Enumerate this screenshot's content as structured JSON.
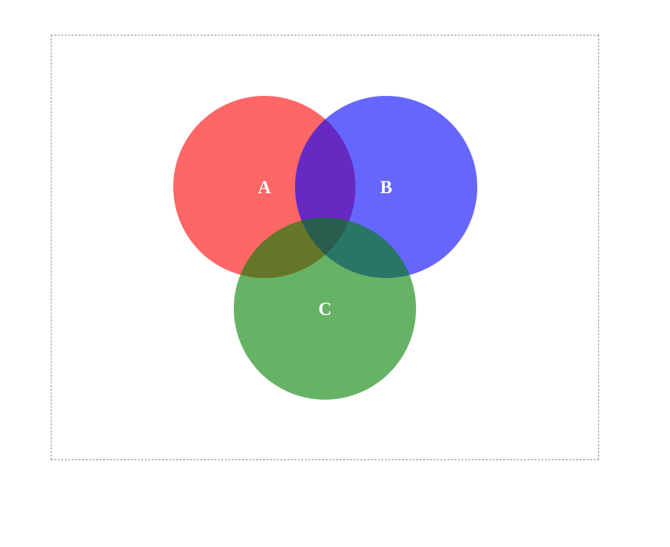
{
  "diagram": {
    "type": "venn",
    "sets": [
      {
        "id": "a",
        "label": "A",
        "color": "#ff0000",
        "opacity": 0.6
      },
      {
        "id": "b",
        "label": "B",
        "color": "#0000ff",
        "opacity": 0.6
      },
      {
        "id": "c",
        "label": "C",
        "color": "#008000",
        "opacity": 0.6
      }
    ]
  }
}
